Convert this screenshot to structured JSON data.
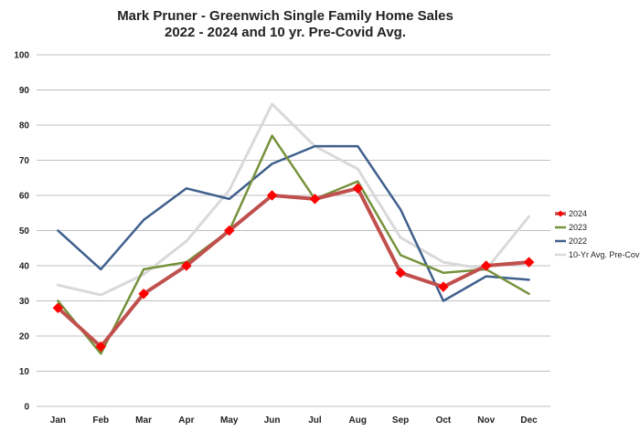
{
  "chart_data": {
    "type": "line",
    "title": "Mark Pruner - Greenwich Single Family Home Sales",
    "subtitle": "2022 - 2024 and 10 yr. Pre-Covid Avg.",
    "xlabel": "",
    "ylabel": "",
    "categories": [
      "Jan",
      "Feb",
      "Mar",
      "Apr",
      "May",
      "Jun",
      "Jul",
      "Aug",
      "Sep",
      "Oct",
      "Nov",
      "Dec"
    ],
    "ylim": [
      0,
      100
    ],
    "yticks": [
      "0",
      "10",
      "20",
      "30",
      "40",
      "50",
      "60",
      "70",
      "80",
      "90",
      "100"
    ],
    "grid": true,
    "legend_position": "right",
    "series": [
      {
        "name": "10-Yr Avg. Pre-Covid",
        "color": "#d9d9d9",
        "marker": "none",
        "values": [
          34.5,
          31.7,
          37.5,
          47,
          61.5,
          86,
          74,
          67.5,
          48,
          41,
          39,
          54
        ]
      },
      {
        "name": "2022",
        "color": "#3f5f8c",
        "marker": "none",
        "values": [
          50,
          39,
          53,
          62,
          59,
          69,
          74,
          74,
          56,
          30,
          37,
          36
        ]
      },
      {
        "name": "2023",
        "color": "#76923c",
        "marker": "none",
        "values": [
          30,
          15,
          39,
          41,
          50,
          77,
          59,
          64,
          43,
          38,
          39,
          32
        ]
      },
      {
        "name": "2024",
        "color": "#c0504d",
        "marker": "diamond",
        "marker_color": "#ff0000",
        "values": [
          28,
          17,
          32,
          40,
          50,
          60,
          59,
          62,
          38,
          34,
          40,
          41
        ]
      }
    ],
    "legend_order": [
      "2024",
      "2023",
      "2022",
      "10-Yr Avg. Pre-Covid"
    ]
  }
}
